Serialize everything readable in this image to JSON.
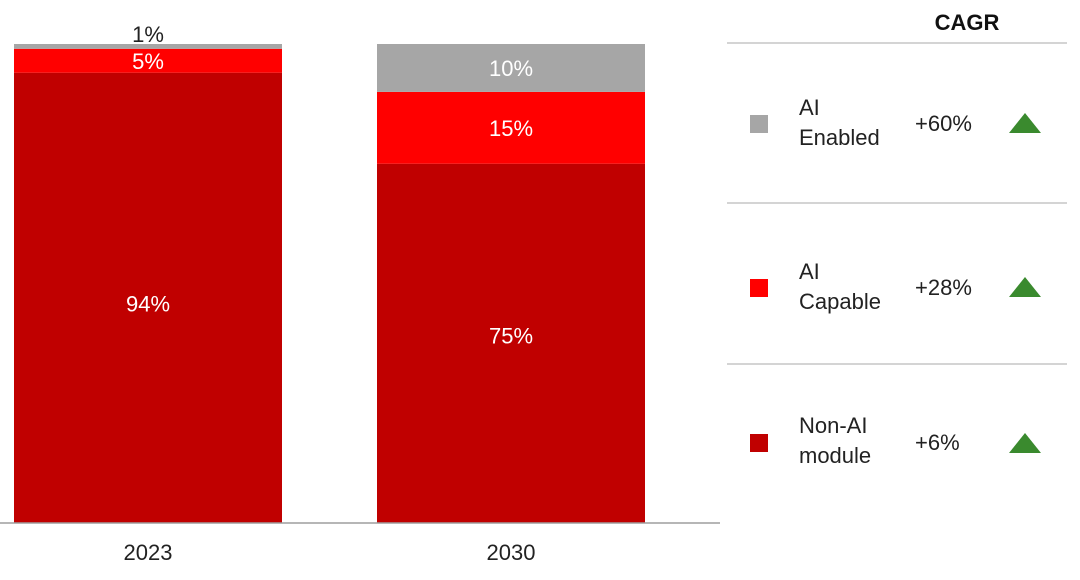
{
  "chart_data": {
    "type": "bar",
    "stacked": true,
    "percent_stacked": true,
    "categories": [
      "2023",
      "2030"
    ],
    "series": [
      {
        "name": "Non-AI module",
        "values": [
          94,
          75
        ],
        "labels": [
          "94%",
          "75%"
        ],
        "color": "#c00000"
      },
      {
        "name": "AI Capable",
        "values": [
          5,
          15
        ],
        "labels": [
          "5%",
          "15%"
        ],
        "color": "#ff0000"
      },
      {
        "name": "AI Enabled",
        "values": [
          1,
          10
        ],
        "labels": [
          "1%",
          "10%"
        ],
        "color": "#a6a6a6"
      }
    ],
    "ylim": [
      0,
      100
    ],
    "grid": false
  },
  "legend": {
    "header": "CAGR",
    "items": [
      {
        "key": "ai_enabled",
        "name_line1": "AI",
        "name_line2": "Enabled",
        "cagr": "+60%",
        "color": "#a6a6a6",
        "icon": "triangle-up-icon"
      },
      {
        "key": "ai_capable",
        "name_line1": "AI",
        "name_line2": "Capable",
        "cagr": "+28%",
        "color": "#ff0000",
        "icon": "triangle-up-icon"
      },
      {
        "key": "non_ai",
        "name_line1": "Non-AI",
        "name_line2": "module",
        "cagr": "+6%",
        "color": "#c00000",
        "icon": "triangle-up-icon"
      }
    ],
    "trend_color": "#3a8a2e"
  }
}
